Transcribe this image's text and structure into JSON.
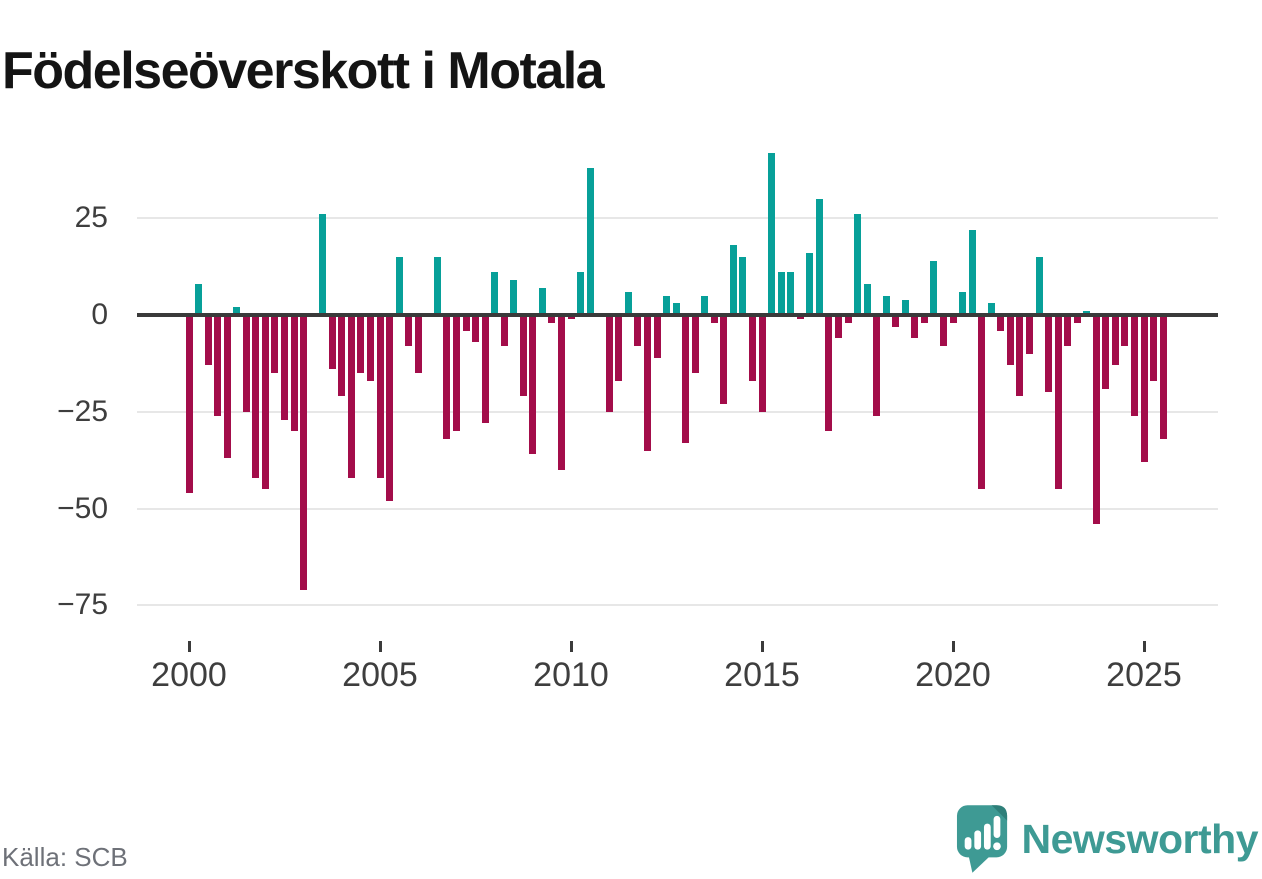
{
  "title": "Födelseöverskott i Motala",
  "source": "Källa: SCB",
  "brand": {
    "name": "Newsworthy",
    "icon": "newsworthy-speech-bubble-chart-icon"
  },
  "colors": {
    "positive": "#07a099",
    "negative": "#a30d4a",
    "axis": "#3b3b3b",
    "grid": "#e7e7e7",
    "tick_label": "#3e3e3e",
    "source_text": "#6e7178",
    "brand_teal": "#3e9a94",
    "title_text": "#141414",
    "background": "#ffffff"
  },
  "chart_data": {
    "type": "bar",
    "title": "Födelseöverskott i Motala",
    "frequency": "quarterly",
    "x_ticks": [
      2000,
      2005,
      2010,
      2015,
      2020,
      2025
    ],
    "y_ticks": [
      25,
      0,
      -25,
      -50,
      -75
    ],
    "ylim": [
      -75,
      45
    ],
    "grid": true,
    "legend": "none",
    "categories": [
      "2000 Q1",
      "2000 Q2",
      "2000 Q3",
      "2000 Q4",
      "2001 Q1",
      "2001 Q2",
      "2001 Q3",
      "2001 Q4",
      "2002 Q1",
      "2002 Q2",
      "2002 Q3",
      "2002 Q4",
      "2003 Q1",
      "2003 Q2",
      "2003 Q3",
      "2003 Q4",
      "2004 Q1",
      "2004 Q2",
      "2004 Q3",
      "2004 Q4",
      "2005 Q1",
      "2005 Q2",
      "2005 Q3",
      "2005 Q4",
      "2006 Q1",
      "2006 Q2",
      "2006 Q3",
      "2006 Q4",
      "2007 Q1",
      "2007 Q2",
      "2007 Q3",
      "2007 Q4",
      "2008 Q1",
      "2008 Q2",
      "2008 Q3",
      "2008 Q4",
      "2009 Q1",
      "2009 Q2",
      "2009 Q3",
      "2009 Q4",
      "2010 Q1",
      "2010 Q2",
      "2010 Q3",
      "2010 Q4",
      "2011 Q1",
      "2011 Q2",
      "2011 Q3",
      "2011 Q4",
      "2012 Q1",
      "2012 Q2",
      "2012 Q3",
      "2012 Q4",
      "2013 Q1",
      "2013 Q2",
      "2013 Q3",
      "2013 Q4",
      "2014 Q1",
      "2014 Q2",
      "2014 Q3",
      "2014 Q4",
      "2015 Q1",
      "2015 Q2",
      "2015 Q3",
      "2015 Q4",
      "2016 Q1",
      "2016 Q2",
      "2016 Q3",
      "2016 Q4",
      "2017 Q1",
      "2017 Q2",
      "2017 Q3",
      "2017 Q4",
      "2018 Q1",
      "2018 Q2",
      "2018 Q3",
      "2018 Q4",
      "2019 Q1",
      "2019 Q2",
      "2019 Q3",
      "2019 Q4",
      "2020 Q1",
      "2020 Q2",
      "2020 Q3",
      "2020 Q4",
      "2021 Q1",
      "2021 Q2",
      "2021 Q3",
      "2021 Q4",
      "2022 Q1",
      "2022 Q2",
      "2022 Q3",
      "2022 Q4",
      "2023 Q1",
      "2023 Q2",
      "2023 Q3",
      "2023 Q4",
      "2024 Q1",
      "2024 Q2",
      "2024 Q3",
      "2024 Q4",
      "2025 Q1",
      "2025 Q2",
      "2025 Q3"
    ],
    "values": [
      -46,
      8,
      -13,
      -26,
      -37,
      2,
      -25,
      -42,
      -45,
      -15,
      -27,
      -30,
      -71,
      0,
      26,
      -14,
      -21,
      -42,
      -15,
      -17,
      -42,
      -48,
      15,
      -8,
      -15,
      0,
      15,
      -32,
      -30,
      -4,
      -7,
      -28,
      11,
      -8,
      9,
      -21,
      -36,
      7,
      -2,
      -40,
      -1,
      11,
      38,
      0,
      -25,
      -17,
      6,
      -8,
      -35,
      -11,
      5,
      3,
      -33,
      -15,
      5,
      -2,
      -23,
      18,
      15,
      -17,
      -25,
      42,
      11,
      11,
      -1,
      16,
      30,
      -30,
      -6,
      -2,
      26,
      8,
      -26,
      5,
      -3,
      4,
      -6,
      -2,
      14,
      -8,
      -2,
      6,
      22,
      -45,
      3,
      -4,
      -13,
      -21,
      -10,
      15,
      -20,
      -45,
      -8,
      -2,
      1,
      -54,
      -19,
      -13,
      -8,
      -26,
      -38,
      -17,
      -32
    ]
  }
}
